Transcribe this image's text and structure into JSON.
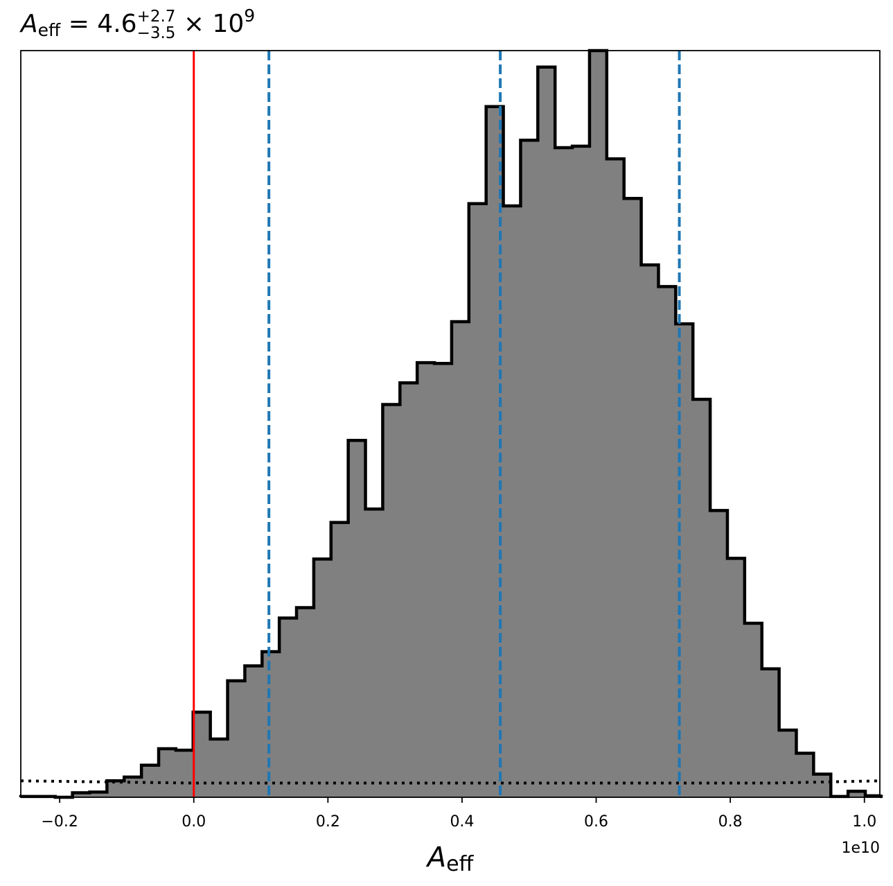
{
  "chart_data": {
    "type": "histogram",
    "title": {
      "symbol": "A",
      "subscript": "eff",
      "equals": " = 4.6",
      "sup": "+2.7",
      "sub": "−3.5",
      "times": " × 10",
      "exp": "9"
    },
    "xlabel": {
      "symbol": "A",
      "subscript": "eff"
    },
    "x_offset_label": "1e10",
    "xlim": [
      -0.258,
      1.023
    ],
    "ylim": [
      0,
      1.0
    ],
    "x_ticks": [
      -0.2,
      0.0,
      0.2,
      0.4,
      0.6,
      0.8,
      1.0
    ],
    "x_tick_labels": [
      "−0.2",
      "0.0",
      "0.2",
      "0.4",
      "0.6",
      "0.8",
      "1.0"
    ],
    "y_ticks_shown": false,
    "bin_width": 0.0257,
    "bin_edges_start": -0.258,
    "values": [
      0.001,
      0.001,
      0.0,
      0.006,
      0.007,
      0.022,
      0.027,
      0.043,
      0.065,
      0.063,
      0.114,
      0.078,
      0.156,
      0.176,
      0.195,
      0.24,
      0.254,
      0.319,
      0.368,
      0.478,
      0.386,
      0.526,
      0.555,
      0.582,
      0.581,
      0.637,
      0.795,
      0.925,
      0.792,
      0.88,
      0.978,
      0.87,
      0.872,
      1.0,
      0.855,
      0.802,
      0.713,
      0.684,
      0.634,
      0.533,
      0.384,
      0.32,
      0.233,
      0.172,
      0.09,
      0.059,
      0.031,
      0.001,
      0.008,
      0.002,
      0.001
    ],
    "fill_color": "#808080",
    "edge_color": "#000000",
    "vertical_lines": [
      {
        "x": 0.0,
        "color": "#ff0000",
        "style": "solid"
      },
      {
        "x": 0.112,
        "color": "#1f77b4",
        "style": "dashed"
      },
      {
        "x": 0.457,
        "color": "#1f77b4",
        "style": "dashed"
      },
      {
        "x": 0.724,
        "color": "#1f77b4",
        "style": "dashed"
      }
    ],
    "prior_line": {
      "style": "dotted",
      "color": "#000000",
      "y_left": 0.022,
      "y_right": 0.022,
      "y_mid": 0.019
    },
    "grid": false,
    "legend": "none"
  }
}
